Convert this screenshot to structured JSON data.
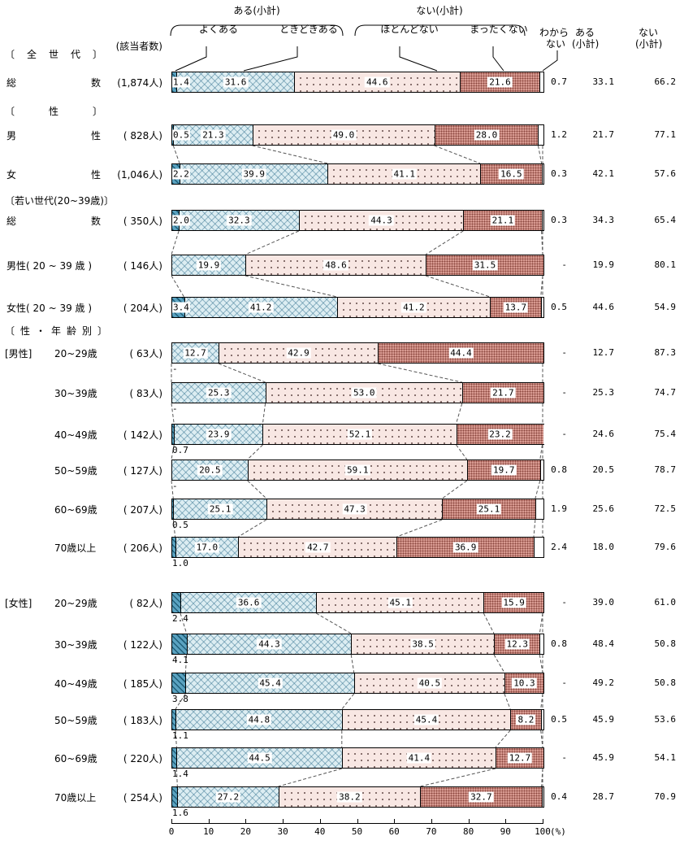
{
  "legend": {
    "aru_subtotal": "ある(小計)",
    "nai_subtotal": "ない(小計)",
    "yokuaru": "よくある",
    "tokidoki": "ときどきある",
    "hotondonai": "ほとんどない",
    "mattakunai": "まったくない",
    "wakaranai_l1": "わから",
    "wakaranai_l2": "ない"
  },
  "columns": {
    "count_header": "(該当者数)",
    "aru_l1": "ある",
    "aru_l2": "(小計)",
    "nai_l1": "ない",
    "nai_l2": "(小計)"
  },
  "axis": {
    "ticks": [
      0,
      10,
      20,
      30,
      40,
      50,
      60,
      70,
      80,
      90,
      100
    ],
    "unit": "(%)"
  },
  "colors": {
    "yokuaru_base": "#5aa2c0",
    "yokuaru_stripe": "#1f5e78",
    "tokidoki_bg": "#dcedf2",
    "tokidoki_mark": "#2f6e8c",
    "hotondonai_bg": "#f8e7e3",
    "hotondonai_dot": "#6b5250",
    "mattakunai_bg": "#d89a91",
    "mattakunai_dot": "#8a453d",
    "wakaranai_bg": "#ffffff"
  },
  "chart_data": {
    "type": "stacked_bar_horizontal",
    "unit": "%",
    "xlim": [
      0,
      100
    ],
    "series_names": [
      "よくある",
      "ときどきある",
      "ほとんどない",
      "まったくない",
      "わからない"
    ],
    "group_headers": [
      "〔全世代〕",
      "〔性〕",
      "〔若い世代(20~39歳)〕",
      "〔性・年齢別〕"
    ],
    "rows": [
      {
        "label": "総数",
        "prefix": "",
        "count": "(1,874人)",
        "values": {
          "yokuaru": 1.4,
          "tokidoki": 31.6,
          "hotondonai": 44.6,
          "mattakunai": 21.6
        },
        "labels": {
          "yokuaru": "1.4",
          "tokidoki": "31.6",
          "hotondonai": "44.6",
          "mattakunai": "21.6"
        },
        "yoku_label_pos": "inline",
        "wakaranai": "0.7",
        "aru_subtotal": "33.1",
        "nai_subtotal": "66.2"
      },
      {
        "label": "男性",
        "prefix": "",
        "count": "( 828人)",
        "values": {
          "yokuaru": 0.5,
          "tokidoki": 21.3,
          "hotondonai": 49.0,
          "mattakunai": 28.0
        },
        "labels": {
          "yokuaru": "0.5",
          "tokidoki": "21.3",
          "hotondonai": "49.0",
          "mattakunai": "28.0"
        },
        "yoku_label_pos": "inline",
        "wakaranai": "1.2",
        "aru_subtotal": "21.7",
        "nai_subtotal": "77.1"
      },
      {
        "label": "女性",
        "prefix": "",
        "count": "(1,046人)",
        "values": {
          "yokuaru": 2.2,
          "tokidoki": 39.9,
          "hotondonai": 41.1,
          "mattakunai": 16.5
        },
        "labels": {
          "yokuaru": "2.2",
          "tokidoki": "39.9",
          "hotondonai": "41.1",
          "mattakunai": "16.5"
        },
        "yoku_label_pos": "inline",
        "wakaranai": "0.3",
        "aru_subtotal": "42.1",
        "nai_subtotal": "57.6"
      },
      {
        "label": "総数",
        "prefix": "",
        "count": "( 350人)",
        "values": {
          "yokuaru": 2.0,
          "tokidoki": 32.3,
          "hotondonai": 44.3,
          "mattakunai": 21.1
        },
        "labels": {
          "yokuaru": "2.0",
          "tokidoki": "32.3",
          "hotondonai": "44.3",
          "mattakunai": "21.1"
        },
        "yoku_label_pos": "inline",
        "wakaranai": "0.3",
        "aru_subtotal": "34.3",
        "nai_subtotal": "65.4"
      },
      {
        "label": "男性( 20 ~ 39 歳 )",
        "prefix": "",
        "count": "( 146人)",
        "values": {
          "yokuaru": 0,
          "tokidoki": 19.9,
          "hotondonai": 48.6,
          "mattakunai": 31.5
        },
        "labels": {
          "yokuaru": null,
          "tokidoki": "19.9",
          "hotondonai": "48.6",
          "mattakunai": "31.5"
        },
        "yoku_label_pos": "none",
        "wakaranai": "-",
        "aru_subtotal": "19.9",
        "nai_subtotal": "80.1"
      },
      {
        "label": "女性( 20 ~ 39 歳 )",
        "prefix": "",
        "count": "( 204人)",
        "values": {
          "yokuaru": 3.4,
          "tokidoki": 41.2,
          "hotondonai": 41.2,
          "mattakunai": 13.7
        },
        "labels": {
          "yokuaru": "3.4",
          "tokidoki": "41.2",
          "hotondonai": "41.2",
          "mattakunai": "13.7"
        },
        "yoku_label_pos": "inline",
        "wakaranai": "0.5",
        "aru_subtotal": "44.6",
        "nai_subtotal": "54.9"
      },
      {
        "label": "20~29歳",
        "prefix": "[男性]",
        "count": "(  63人)",
        "values": {
          "yokuaru": 0,
          "tokidoki": 12.7,
          "hotondonai": 42.9,
          "mattakunai": 44.4
        },
        "labels": {
          "yokuaru": "-",
          "tokidoki": "12.7",
          "hotondonai": "42.9",
          "mattakunai": "44.4"
        },
        "yoku_label_pos": "below",
        "wakaranai": "-",
        "aru_subtotal": "12.7",
        "nai_subtotal": "87.3"
      },
      {
        "label": "30~39歳",
        "prefix": "",
        "count": "(  83人)",
        "values": {
          "yokuaru": 0,
          "tokidoki": 25.3,
          "hotondonai": 53.0,
          "mattakunai": 21.7
        },
        "labels": {
          "yokuaru": "-",
          "tokidoki": "25.3",
          "hotondonai": "53.0",
          "mattakunai": "21.7"
        },
        "yoku_label_pos": "below",
        "wakaranai": "-",
        "aru_subtotal": "25.3",
        "nai_subtotal": "74.7"
      },
      {
        "label": "40~49歳",
        "prefix": "",
        "count": "( 142人)",
        "values": {
          "yokuaru": 0.7,
          "tokidoki": 23.9,
          "hotondonai": 52.1,
          "mattakunai": 23.2
        },
        "labels": {
          "yokuaru": "0.7",
          "tokidoki": "23.9",
          "hotondonai": "52.1",
          "mattakunai": "23.2"
        },
        "yoku_label_pos": "below",
        "wakaranai": "-",
        "aru_subtotal": "24.6",
        "nai_subtotal": "75.4"
      },
      {
        "label": "50~59歳",
        "prefix": "",
        "count": "( 127人)",
        "values": {
          "yokuaru": 0,
          "tokidoki": 20.5,
          "hotondonai": 59.1,
          "mattakunai": 19.7
        },
        "labels": {
          "yokuaru": "-",
          "tokidoki": "20.5",
          "hotondonai": "59.1",
          "mattakunai": "19.7"
        },
        "yoku_label_pos": "below",
        "wakaranai": "0.8",
        "aru_subtotal": "20.5",
        "nai_subtotal": "78.7"
      },
      {
        "label": "60~69歳",
        "prefix": "",
        "count": "( 207人)",
        "values": {
          "yokuaru": 0.5,
          "tokidoki": 25.1,
          "hotondonai": 47.3,
          "mattakunai": 25.1
        },
        "labels": {
          "yokuaru": "0.5",
          "tokidoki": "25.1",
          "hotondonai": "47.3",
          "mattakunai": "25.1"
        },
        "yoku_label_pos": "below",
        "wakaranai": "1.9",
        "aru_subtotal": "25.6",
        "nai_subtotal": "72.5"
      },
      {
        "label": "70歳以上",
        "prefix": "",
        "count": "( 206人)",
        "values": {
          "yokuaru": 1.0,
          "tokidoki": 17.0,
          "hotondonai": 42.7,
          "mattakunai": 36.9
        },
        "labels": {
          "yokuaru": "1.0",
          "tokidoki": "17.0",
          "hotondonai": "42.7",
          "mattakunai": "36.9"
        },
        "yoku_label_pos": "below",
        "wakaranai": "2.4",
        "aru_subtotal": "18.0",
        "nai_subtotal": "79.6"
      },
      {
        "label": "20~29歳",
        "prefix": "[女性]",
        "count": "(  82人)",
        "values": {
          "yokuaru": 2.4,
          "tokidoki": 36.6,
          "hotondonai": 45.1,
          "mattakunai": 15.9
        },
        "labels": {
          "yokuaru": "2.4",
          "tokidoki": "36.6",
          "hotondonai": "45.1",
          "mattakunai": "15.9"
        },
        "yoku_label_pos": "below",
        "wakaranai": "-",
        "aru_subtotal": "39.0",
        "nai_subtotal": "61.0"
      },
      {
        "label": "30~39歳",
        "prefix": "",
        "count": "( 122人)",
        "values": {
          "yokuaru": 4.1,
          "tokidoki": 44.3,
          "hotondonai": 38.5,
          "mattakunai": 12.3
        },
        "labels": {
          "yokuaru": "4.1",
          "tokidoki": "44.3",
          "hotondonai": "38.5",
          "mattakunai": "12.3"
        },
        "yoku_label_pos": "below",
        "wakaranai": "0.8",
        "aru_subtotal": "48.4",
        "nai_subtotal": "50.8"
      },
      {
        "label": "40~49歳",
        "prefix": "",
        "count": "( 185人)",
        "values": {
          "yokuaru": 3.8,
          "tokidoki": 45.4,
          "hotondonai": 40.5,
          "mattakunai": 10.3
        },
        "labels": {
          "yokuaru": "3.8",
          "tokidoki": "45.4",
          "hotondonai": "40.5",
          "mattakunai": "10.3"
        },
        "yoku_label_pos": "below",
        "wakaranai": "-",
        "aru_subtotal": "49.2",
        "nai_subtotal": "50.8"
      },
      {
        "label": "50~59歳",
        "prefix": "",
        "count": "( 183人)",
        "values": {
          "yokuaru": 1.1,
          "tokidoki": 44.8,
          "hotondonai": 45.4,
          "mattakunai": 8.2
        },
        "labels": {
          "yokuaru": "1.1",
          "tokidoki": "44.8",
          "hotondonai": "45.4",
          "mattakunai": "8.2"
        },
        "yoku_label_pos": "below",
        "wakaranai": "0.5",
        "aru_subtotal": "45.9",
        "nai_subtotal": "53.6"
      },
      {
        "label": "60~69歳",
        "prefix": "",
        "count": "( 220人)",
        "values": {
          "yokuaru": 1.4,
          "tokidoki": 44.5,
          "hotondonai": 41.4,
          "mattakunai": 12.7
        },
        "labels": {
          "yokuaru": "1.4",
          "tokidoki": "44.5",
          "hotondonai": "41.4",
          "mattakunai": "12.7"
        },
        "yoku_label_pos": "below",
        "wakaranai": "-",
        "aru_subtotal": "45.9",
        "nai_subtotal": "54.1"
      },
      {
        "label": "70歳以上",
        "prefix": "",
        "count": "( 254人)",
        "values": {
          "yokuaru": 1.6,
          "tokidoki": 27.2,
          "hotondonai": 38.2,
          "mattakunai": 32.7
        },
        "labels": {
          "yokuaru": "1.6",
          "tokidoki": "27.2",
          "hotondonai": "38.2",
          "mattakunai": "32.7"
        },
        "yoku_label_pos": "below",
        "wakaranai": "0.4",
        "aru_subtotal": "28.7",
        "nai_subtotal": "70.9"
      }
    ]
  }
}
